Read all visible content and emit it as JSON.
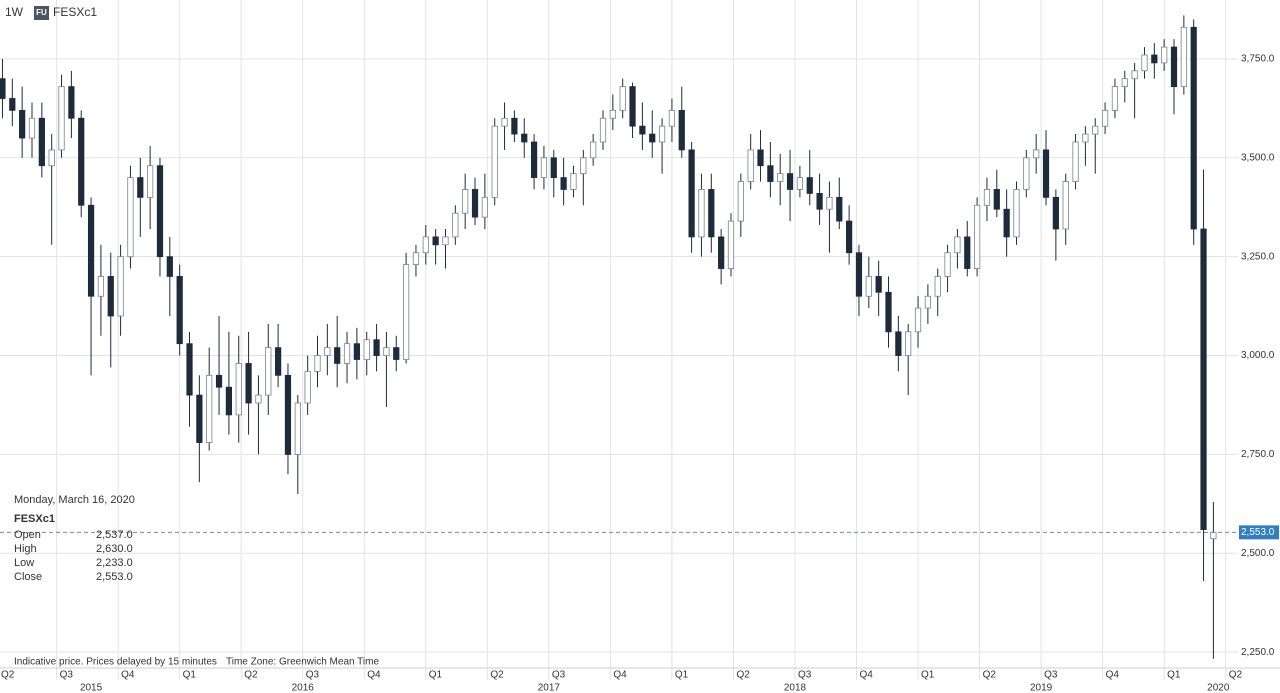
{
  "chart_data": {
    "type": "candlestick",
    "interval": "1W",
    "badge": "FU",
    "symbol": "FESXc1",
    "info_panel": {
      "date": "Monday, March 16, 2020",
      "symbol": "FESXc1",
      "rows": [
        {
          "label": "Open",
          "value": "2,537.0"
        },
        {
          "label": "High",
          "value": "2,630.0"
        },
        {
          "label": "Low",
          "value": "2,233.0"
        },
        {
          "label": "Close",
          "value": "2,553.0"
        }
      ]
    },
    "footer": [
      "Indicative price. Prices delayed by 15 minutes",
      "Time Zone: Greenwich Mean Time"
    ],
    "last_price": {
      "value": 2553,
      "label": "2,553.0"
    },
    "xlim": [
      2015.27,
      2020.3
    ],
    "ylim": [
      2210,
      3899
    ],
    "grid": true,
    "up_color": "#ffffff",
    "down_color": "#1e2b3b",
    "xticks": [
      {
        "value": 2015.25,
        "label": "Q2"
      },
      {
        "value": 2015.5,
        "label": "Q3"
      },
      {
        "value": 2015.75,
        "label": "Q4"
      },
      {
        "value": 2016,
        "label": "Q1"
      },
      {
        "value": 2016.25,
        "label": "Q2"
      },
      {
        "value": 2016.5,
        "label": "Q3"
      },
      {
        "value": 2016.75,
        "label": "Q4"
      },
      {
        "value": 2017,
        "label": "Q1"
      },
      {
        "value": 2017.25,
        "label": "Q2"
      },
      {
        "value": 2017.5,
        "label": "Q3"
      },
      {
        "value": 2017.75,
        "label": "Q4"
      },
      {
        "value": 2018,
        "label": "Q1"
      },
      {
        "value": 2018.25,
        "label": "Q2"
      },
      {
        "value": 2018.5,
        "label": "Q3"
      },
      {
        "value": 2018.75,
        "label": "Q4"
      },
      {
        "value": 2019,
        "label": "Q1"
      },
      {
        "value": 2019.25,
        "label": "Q2"
      },
      {
        "value": 2019.5,
        "label": "Q3"
      },
      {
        "value": 2019.75,
        "label": "Q4"
      },
      {
        "value": 2020,
        "label": "Q1"
      },
      {
        "value": 2020.25,
        "label": "Q2"
      }
    ],
    "year_labels": [
      {
        "value": 2015.64,
        "label": "2015"
      },
      {
        "value": 2016.5,
        "label": "2016"
      },
      {
        "value": 2017.5,
        "label": "2017"
      },
      {
        "value": 2018.5,
        "label": "2018"
      },
      {
        "value": 2019.5,
        "label": "2019"
      },
      {
        "value": 2020.22,
        "label": "2020"
      }
    ],
    "yticks": [
      {
        "value": 2250,
        "label": "2,250.0"
      },
      {
        "value": 2500,
        "label": "2,500.0"
      },
      {
        "value": 2750,
        "label": "2,750.0"
      },
      {
        "value": 3000,
        "label": "3,000.0"
      },
      {
        "value": 3250,
        "label": "3,250.0"
      },
      {
        "value": 3500,
        "label": "3,500.0"
      },
      {
        "value": 3750,
        "label": "3,750.0"
      }
    ],
    "x": [
      2015.28,
      2015.32,
      2015.36,
      2015.4,
      2015.44,
      2015.48,
      2015.52,
      2015.56,
      2015.6,
      2015.64,
      2015.68,
      2015.72,
      2015.76,
      2015.8,
      2015.84,
      2015.88,
      2015.92,
      2015.96,
      2016,
      2016.04,
      2016.08,
      2016.12,
      2016.16,
      2016.2,
      2016.24,
      2016.28,
      2016.32,
      2016.36,
      2016.4,
      2016.44,
      2016.48,
      2016.52,
      2016.56,
      2016.6,
      2016.64,
      2016.68,
      2016.72,
      2016.76,
      2016.8,
      2016.84,
      2016.88,
      2016.92,
      2016.96,
      2017,
      2017.04,
      2017.08,
      2017.12,
      2017.16,
      2017.2,
      2017.24,
      2017.28,
      2017.32,
      2017.36,
      2017.4,
      2017.44,
      2017.48,
      2017.52,
      2017.56,
      2017.6,
      2017.64,
      2017.68,
      2017.72,
      2017.76,
      2017.8,
      2017.84,
      2017.88,
      2017.92,
      2017.96,
      2018,
      2018.04,
      2018.08,
      2018.12,
      2018.16,
      2018.2,
      2018.24,
      2018.28,
      2018.32,
      2018.36,
      2018.4,
      2018.44,
      2018.48,
      2018.52,
      2018.56,
      2018.6,
      2018.64,
      2018.68,
      2018.72,
      2018.76,
      2018.8,
      2018.84,
      2018.88,
      2018.92,
      2018.96,
      2019,
      2019.04,
      2019.08,
      2019.12,
      2019.16,
      2019.2,
      2019.24,
      2019.28,
      2019.32,
      2019.36,
      2019.4,
      2019.44,
      2019.48,
      2019.52,
      2019.56,
      2019.6,
      2019.64,
      2019.68,
      2019.72,
      2019.76,
      2019.8,
      2019.84,
      2019.88,
      2019.92,
      2019.96,
      2020,
      2020.04,
      2020.08,
      2020.12,
      2020.16,
      2020.2
    ],
    "open": [
      3700,
      3650,
      3620,
      3550,
      3600,
      3480,
      3520,
      3680,
      3600,
      3380,
      3150,
      3200,
      3100,
      3250,
      3450,
      3400,
      3480,
      3250,
      3200,
      3030,
      2900,
      2780,
      2950,
      2920,
      2850,
      2980,
      2880,
      2900,
      3020,
      2950,
      2750,
      2880,
      2960,
      3000,
      3020,
      2980,
      3030,
      2990,
      3040,
      3000,
      3020,
      2990,
      3230,
      3260,
      3300,
      3280,
      3300,
      3360,
      3420,
      3350,
      3400,
      3580,
      3600,
      3560,
      3540,
      3450,
      3500,
      3450,
      3420,
      3460,
      3500,
      3540,
      3600,
      3620,
      3680,
      3580,
      3560,
      3540,
      3580,
      3620,
      3520,
      3300,
      3420,
      3300,
      3220,
      3340,
      3440,
      3520,
      3480,
      3440,
      3460,
      3420,
      3450,
      3410,
      3370,
      3400,
      3340,
      3260,
      3150,
      3200,
      3160,
      3060,
      3000,
      3060,
      3120,
      3150,
      3200,
      3260,
      3300,
      3220,
      3380,
      3420,
      3370,
      3300,
      3420,
      3500,
      3520,
      3400,
      3320,
      3440,
      3540,
      3560,
      3580,
      3620,
      3680,
      3700,
      3720,
      3760,
      3740,
      3780,
      3680,
      3830,
      3320,
      2537
    ],
    "high": [
      3750,
      3700,
      3680,
      3640,
      3640,
      3560,
      3710,
      3720,
      3620,
      3400,
      3280,
      3260,
      3280,
      3480,
      3500,
      3530,
      3500,
      3300,
      3230,
      3060,
      2950,
      3020,
      3100,
      3060,
      3050,
      3060,
      2950,
      3080,
      3080,
      2980,
      2900,
      3000,
      3050,
      3080,
      3100,
      3060,
      3070,
      3060,
      3080,
      3060,
      3050,
      3260,
      3280,
      3330,
      3320,
      3320,
      3380,
      3460,
      3450,
      3460,
      3600,
      3640,
      3620,
      3600,
      3560,
      3530,
      3520,
      3500,
      3480,
      3520,
      3560,
      3620,
      3660,
      3700,
      3690,
      3640,
      3620,
      3600,
      3650,
      3680,
      3540,
      3460,
      3460,
      3320,
      3360,
      3460,
      3560,
      3570,
      3540,
      3510,
      3520,
      3480,
      3520,
      3460,
      3440,
      3450,
      3380,
      3280,
      3250,
      3240,
      3200,
      3100,
      3080,
      3150,
      3180,
      3220,
      3280,
      3320,
      3340,
      3400,
      3450,
      3470,
      3420,
      3440,
      3520,
      3560,
      3570,
      3420,
      3460,
      3560,
      3580,
      3600,
      3640,
      3700,
      3720,
      3740,
      3780,
      3790,
      3800,
      3800,
      3860,
      3850,
      3470,
      2630
    ],
    "low": [
      3600,
      3580,
      3500,
      3500,
      3450,
      3280,
      3500,
      3550,
      3350,
      2950,
      3050,
      2970,
      3050,
      3220,
      3300,
      3320,
      3200,
      3100,
      3000,
      2820,
      2680,
      2760,
      2850,
      2800,
      2780,
      2800,
      2750,
      2850,
      2920,
      2700,
      2650,
      2850,
      2920,
      2950,
      2920,
      2930,
      2940,
      2950,
      2960,
      2870,
      2960,
      2980,
      3200,
      3230,
      3230,
      3220,
      3280,
      3320,
      3330,
      3320,
      3380,
      3520,
      3540,
      3500,
      3420,
      3420,
      3400,
      3380,
      3400,
      3380,
      3480,
      3520,
      3570,
      3600,
      3550,
      3520,
      3500,
      3460,
      3540,
      3500,
      3260,
      3250,
      3260,
      3180,
      3200,
      3300,
      3420,
      3440,
      3400,
      3380,
      3340,
      3400,
      3380,
      3330,
      3260,
      3320,
      3230,
      3100,
      3120,
      3100,
      3020,
      2960,
      2900,
      3020,
      3080,
      3100,
      3160,
      3220,
      3200,
      3200,
      3340,
      3350,
      3250,
      3280,
      3400,
      3460,
      3380,
      3240,
      3280,
      3420,
      3480,
      3460,
      3560,
      3600,
      3640,
      3600,
      3700,
      3700,
      3720,
      3610,
      3660,
      3280,
      2430,
      2233
    ],
    "close": [
      3650,
      3620,
      3550,
      3600,
      3480,
      3520,
      3680,
      3600,
      3380,
      3150,
      3200,
      3100,
      3250,
      3450,
      3400,
      3480,
      3250,
      3200,
      3030,
      2900,
      2780,
      2950,
      2920,
      2850,
      2980,
      2880,
      2900,
      3020,
      2950,
      2750,
      2880,
      2960,
      3000,
      3020,
      2980,
      3030,
      2990,
      3040,
      3000,
      3020,
      2990,
      3230,
      3260,
      3300,
      3280,
      3300,
      3360,
      3420,
      3350,
      3400,
      3580,
      3600,
      3560,
      3540,
      3450,
      3500,
      3450,
      3420,
      3460,
      3500,
      3540,
      3600,
      3620,
      3680,
      3580,
      3560,
      3540,
      3580,
      3620,
      3520,
      3300,
      3420,
      3300,
      3220,
      3340,
      3440,
      3520,
      3480,
      3440,
      3460,
      3420,
      3450,
      3410,
      3370,
      3400,
      3340,
      3260,
      3150,
      3200,
      3160,
      3060,
      3000,
      3060,
      3120,
      3150,
      3200,
      3260,
      3300,
      3220,
      3380,
      3420,
      3370,
      3300,
      3420,
      3500,
      3520,
      3400,
      3320,
      3440,
      3540,
      3560,
      3580,
      3620,
      3680,
      3700,
      3720,
      3760,
      3740,
      3780,
      3680,
      3830,
      3320,
      2560,
      2553
    ]
  }
}
